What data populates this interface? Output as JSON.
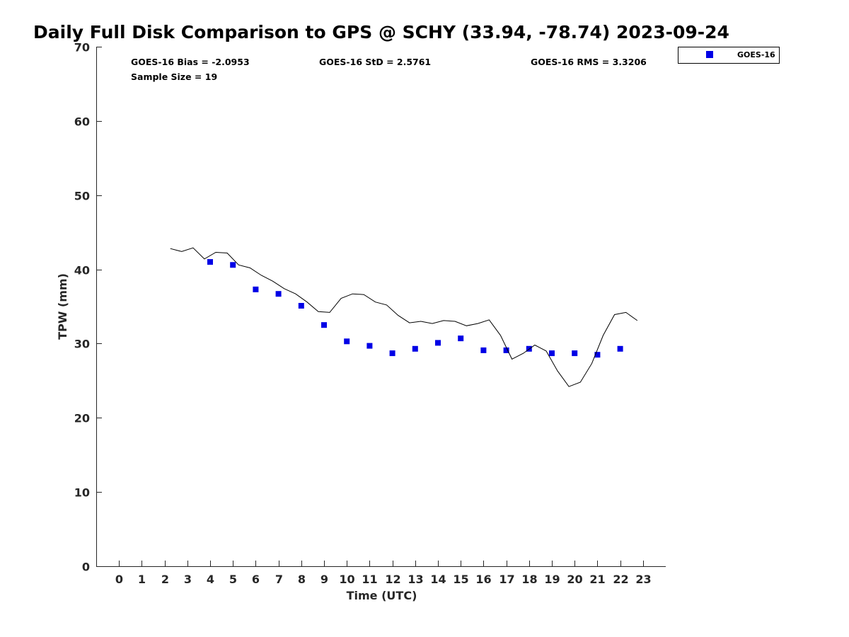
{
  "chart_data": {
    "type": "scatter",
    "title": "Daily Full Disk Comparison to GPS @ SCHY (33.94, -78.74) 2023-09-24",
    "xlabel": "Time (UTC)",
    "ylabel": "TPW (mm)",
    "xlim": [
      -1,
      24
    ],
    "ylim": [
      0,
      70
    ],
    "xticks": [
      0,
      1,
      2,
      3,
      4,
      5,
      6,
      7,
      8,
      9,
      10,
      11,
      12,
      13,
      14,
      15,
      16,
      17,
      18,
      19,
      20,
      21,
      22,
      23
    ],
    "yticks": [
      0,
      10,
      20,
      30,
      40,
      50,
      60,
      70
    ],
    "grid": false,
    "legend_position": "top-right",
    "stats": {
      "bias": "GOES-16 Bias = -2.0953",
      "std": "GOES-16 StD = 2.5761",
      "rms": "GOES-16 RMS = 3.3206",
      "sample": "Sample Size = 19"
    },
    "series": [
      {
        "name": "GOES-16",
        "kind": "markers",
        "color": "#0000e6",
        "x": [
          4,
          5,
          6,
          7,
          8,
          9,
          10,
          11,
          12,
          13,
          14,
          15,
          16,
          17,
          18,
          19,
          20,
          21,
          22
        ],
        "y": [
          41.0,
          40.6,
          37.3,
          36.7,
          35.1,
          32.5,
          30.3,
          29.7,
          28.7,
          29.3,
          30.1,
          30.7,
          29.1,
          29.1,
          29.3,
          28.7,
          28.7,
          28.5,
          29.3
        ]
      },
      {
        "kind": "line",
        "color": "#000000",
        "x": [
          2.25,
          2.75,
          3.25,
          3.75,
          4.25,
          4.75,
          5.25,
          5.75,
          6.25,
          6.75,
          7.25,
          7.75,
          8.25,
          8.75,
          9.25,
          9.75,
          10.25,
          10.75,
          11.25,
          11.75,
          12.25,
          12.75,
          13.25,
          13.75,
          14.25,
          14.75,
          15.25,
          15.75,
          16.25,
          16.75,
          17.25,
          17.75,
          18.25,
          18.75,
          19.25,
          19.75,
          20.25,
          20.75,
          21.25,
          21.75,
          22.25,
          22.75
        ],
        "y": [
          42.8,
          42.4,
          42.9,
          41.4,
          42.3,
          42.2,
          40.6,
          40.2,
          39.2,
          38.4,
          37.4,
          36.7,
          35.6,
          34.3,
          34.2,
          36.1,
          36.7,
          36.6,
          35.6,
          35.2,
          33.8,
          32.8,
          33.0,
          32.7,
          33.1,
          33.0,
          32.4,
          32.7,
          33.2,
          31.1,
          27.9,
          28.7,
          29.8,
          29.0,
          26.3,
          24.2,
          24.8,
          27.3,
          31.1,
          33.9,
          34.2,
          33.1
        ]
      }
    ]
  }
}
